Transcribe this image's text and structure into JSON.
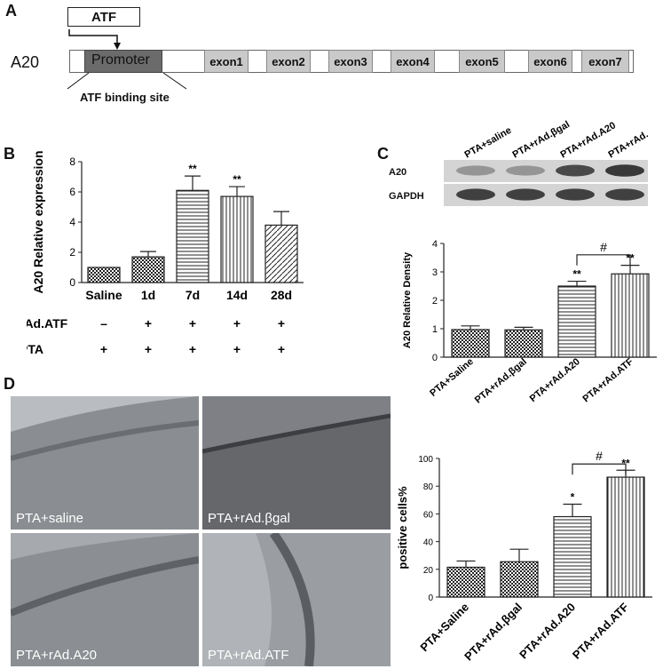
{
  "panel_labels": {
    "a": "A",
    "b": "B",
    "c": "C",
    "d": "D"
  },
  "panel_a": {
    "gene": "A20",
    "factor": "ATF",
    "promoter": "Promoter",
    "binding_site": "ATF binding site",
    "exons": [
      "exon1",
      "exon2",
      "exon3",
      "exon4",
      "exon5",
      "exon6",
      "exon7"
    ]
  },
  "chart_data": [
    {
      "type": "bar",
      "panel": "B",
      "ylabel": "A20 Relative expression",
      "ylim": [
        0,
        8
      ],
      "yticks": [
        "0",
        "2",
        "4",
        "6",
        "8"
      ],
      "categories": [
        "Saline",
        "1d",
        "7d",
        "14d",
        "28d"
      ],
      "values": [
        1.0,
        1.7,
        6.1,
        5.7,
        3.8
      ],
      "errors": [
        0.0,
        0.35,
        0.95,
        0.65,
        0.9
      ],
      "annotations": [
        "",
        "",
        "**",
        "**",
        ""
      ],
      "condition_rows": [
        {
          "label": "rAd.ATF",
          "marks": [
            "–",
            "+",
            "+",
            "+",
            "+"
          ]
        },
        {
          "label": "PTA",
          "marks": [
            "+",
            "+",
            "+",
            "+",
            "+"
          ]
        }
      ]
    },
    {
      "type": "bar",
      "panel": "C",
      "ylabel": "A20 Relative Density",
      "ylim": [
        0,
        4
      ],
      "yticks": [
        "0",
        "1",
        "2",
        "3",
        "4"
      ],
      "categories": [
        "PTA+Saline",
        "PTA+rAd.βgal",
        "PTA+rAd.A20",
        "PTA+rAd.ATF"
      ],
      "values": [
        0.97,
        0.96,
        2.5,
        2.93
      ],
      "errors": [
        0.13,
        0.09,
        0.17,
        0.3
      ],
      "annotations": [
        "",
        "",
        "**",
        "**"
      ],
      "bracket_label": "#"
    },
    {
      "type": "bar",
      "panel": "D",
      "ylabel": "positive cells%",
      "ylim": [
        0,
        100
      ],
      "yticks": [
        "0",
        "20",
        "40",
        "60",
        "80",
        "100"
      ],
      "categories": [
        "PTA+Saline",
        "PTA+rAd.βgal",
        "PTA+rAd.A20",
        "PTA+rAd.ATF"
      ],
      "values": [
        21.5,
        25.5,
        58,
        86.5
      ],
      "errors": [
        4.5,
        9,
        9,
        5
      ],
      "annotations": [
        "",
        "",
        "*",
        "**"
      ],
      "bracket_label": "#"
    }
  ],
  "western": {
    "lanes": [
      "PTA+saline",
      "PTA+rAd.βgal",
      "PTA+rAd.A20",
      "PTA+rAd.ATF"
    ],
    "rows": [
      "A20",
      "GAPDH"
    ],
    "band_intensity": {
      "A20": [
        0.3,
        0.3,
        0.75,
        0.85
      ],
      "GAPDH": [
        0.8,
        0.8,
        0.8,
        0.8
      ]
    }
  },
  "micrographs": [
    "PTA+saline",
    "PTA+rAd.βgal",
    "PTA+rAd.A20",
    "PTA+rAd.ATF"
  ]
}
